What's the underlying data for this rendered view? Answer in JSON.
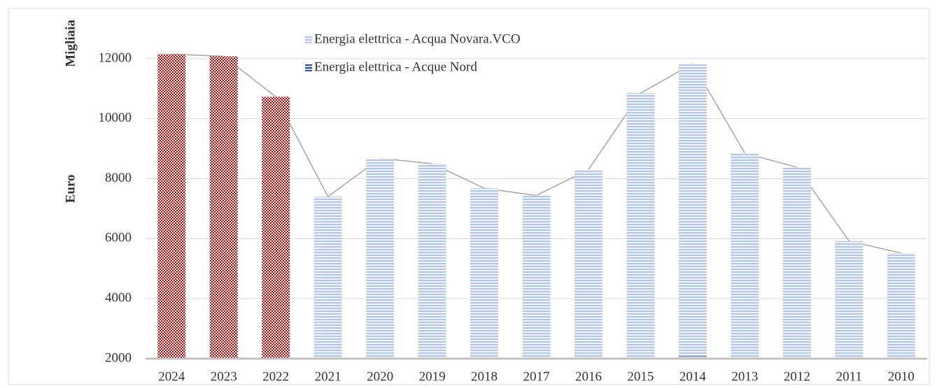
{
  "chart_data": {
    "type": "bar",
    "y_unit_label": "Migliaia",
    "y_label": "Euro",
    "categories": [
      "2024",
      "2023",
      "2022",
      "2021",
      "2020",
      "2019",
      "2018",
      "2017",
      "2016",
      "2015",
      "2014",
      "2013",
      "2012",
      "2011",
      "2010"
    ],
    "series": [
      {
        "name": "Energia elettrica - Acqua Novara.VCO",
        "color": "#b4c7e7",
        "point_colors": [
          "#c00000",
          "#c00000",
          "#c00000",
          "#b4c7e7",
          "#b4c7e7",
          "#b4c7e7",
          "#b4c7e7",
          "#b4c7e7",
          "#b4c7e7",
          "#b4c7e7",
          "#b4c7e7",
          "#b4c7e7",
          "#b4c7e7",
          "#b4c7e7",
          "#b4c7e7"
        ],
        "values": [
          12150,
          12080,
          10730,
          7400,
          8680,
          8500,
          7680,
          7440,
          8300,
          10850,
          11830,
          8850,
          8380,
          5920,
          5520
        ]
      },
      {
        "name": "Energia elettrica - Acque Nord",
        "color": "#2f5597",
        "values": [
          null,
          null,
          null,
          null,
          null,
          null,
          null,
          null,
          null,
          2060,
          2080,
          null,
          null,
          null,
          null
        ]
      }
    ],
    "line_color": "#a6a6a6",
    "ylim": [
      2000,
      13000
    ],
    "yticks": [
      2000,
      4000,
      6000,
      8000,
      10000,
      12000
    ],
    "grid": true
  }
}
